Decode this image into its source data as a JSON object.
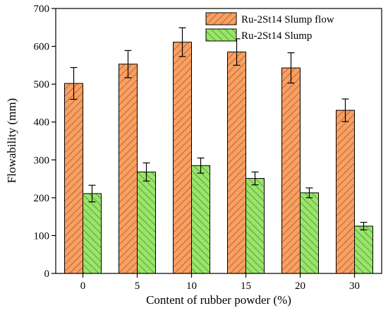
{
  "chart_data": {
    "type": "bar",
    "title": "",
    "xlabel": "Content of rubber powder (%)",
    "ylabel": "Flowability (mm)",
    "categories": [
      "0",
      "5",
      "10",
      "15",
      "20",
      "30"
    ],
    "ylim": [
      0,
      700
    ],
    "yticks": [
      0,
      100,
      200,
      300,
      400,
      500,
      600,
      700
    ],
    "grid": false,
    "legend_position": "top-right",
    "series": [
      {
        "name": "Ru-2St14 Slump flow",
        "values": [
          502,
          553,
          611,
          585,
          543,
          431
        ],
        "errors": [
          42,
          36,
          38,
          35,
          40,
          30
        ],
        "color": "#f4a261",
        "hatch_color": "#c0392b",
        "hatch": "diagonal-right"
      },
      {
        "name": "Ru-2St14 Slump",
        "values": [
          211,
          268,
          285,
          251,
          213,
          125
        ],
        "errors": [
          22,
          24,
          20,
          17,
          13,
          10
        ],
        "color": "#9be36b",
        "hatch_color": "#2e8b1e",
        "hatch": "diagonal-left"
      }
    ]
  }
}
